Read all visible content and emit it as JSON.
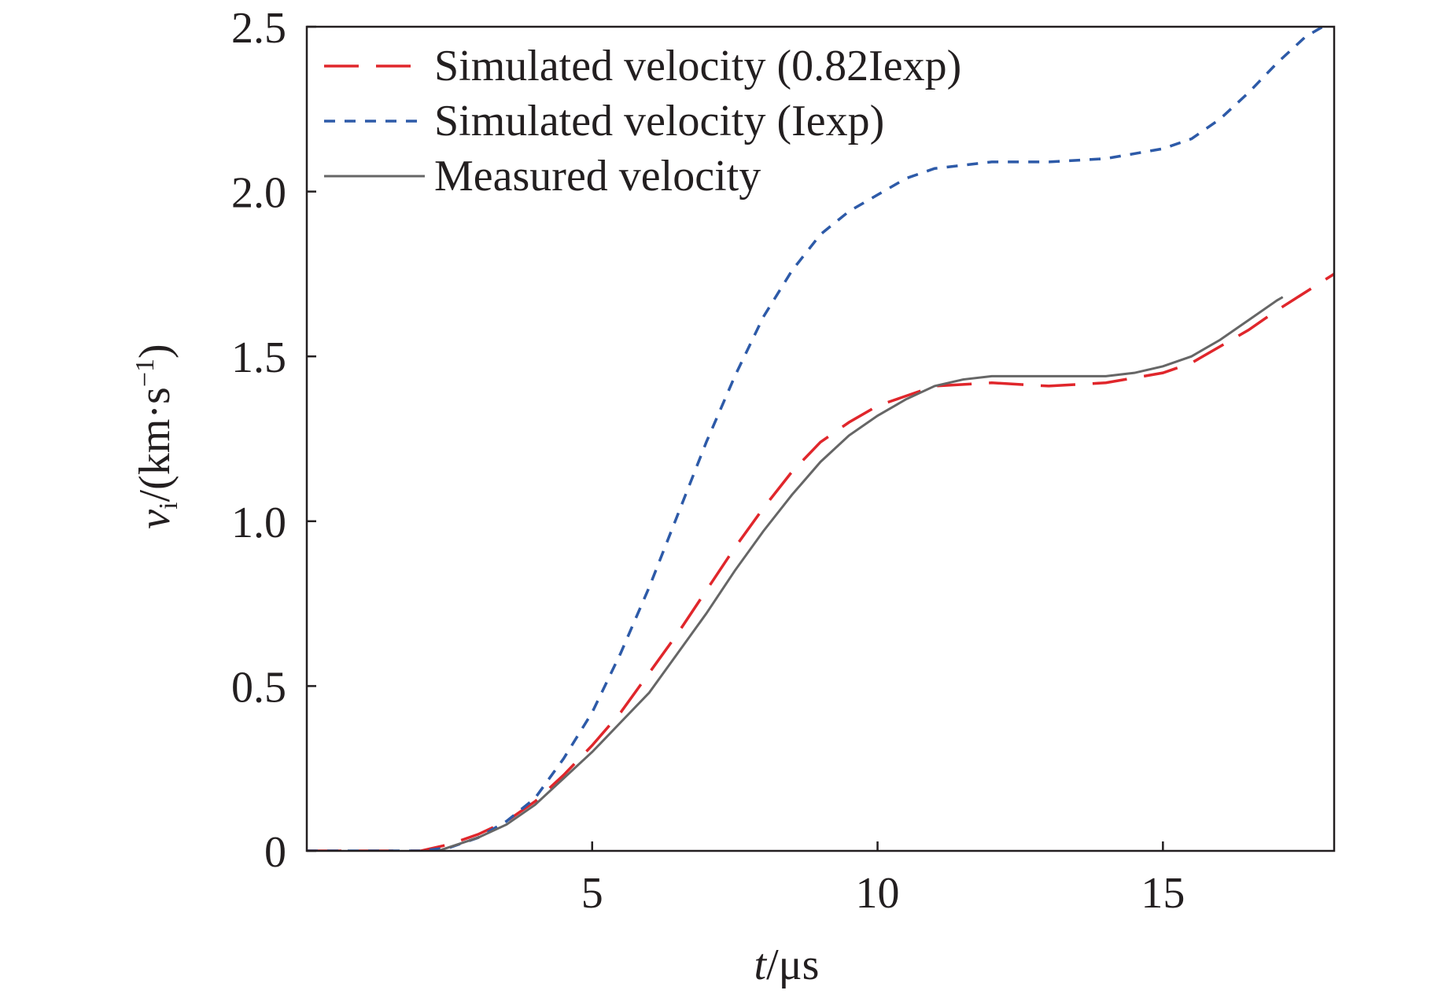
{
  "chart_data": {
    "type": "line",
    "xlabel": [
      "t",
      "/μs"
    ],
    "ylabel": [
      "v",
      "i",
      "/(km·s",
      "−1",
      ")"
    ],
    "xlim": [
      0,
      18
    ],
    "xticks": [
      5,
      10,
      15
    ],
    "ylim": [
      0,
      2.5
    ],
    "yticks": [
      0,
      0.5,
      {
        "value": 1,
        "label": "1.0"
      },
      1.5,
      {
        "value": 2,
        "label": "2.0"
      },
      2.5
    ],
    "legend": "upper left",
    "series": [
      {
        "name": "Simulated velocity (0.82Iexp)",
        "color": "#e0262b",
        "style": "dashed",
        "x": [
          0,
          1,
          2,
          2.5,
          3,
          3.5,
          4,
          4.5,
          5,
          5.5,
          6,
          6.5,
          7,
          7.5,
          8,
          8.5,
          9,
          9.5,
          10,
          10.5,
          11,
          12,
          13,
          14,
          15,
          15.5,
          16,
          16.5,
          17,
          18
        ],
        "values": [
          0,
          0,
          0,
          0.02,
          0.05,
          0.09,
          0.15,
          0.23,
          0.32,
          0.42,
          0.54,
          0.66,
          0.79,
          0.92,
          1.04,
          1.15,
          1.24,
          1.3,
          1.35,
          1.38,
          1.41,
          1.42,
          1.41,
          1.42,
          1.45,
          1.48,
          1.53,
          1.58,
          1.64,
          1.75
        ]
      },
      {
        "name": "Simulated velocity (Iexp)",
        "color": "#2d5aa8",
        "style": "dotted",
        "x": [
          0,
          1,
          2,
          2.5,
          3,
          3.5,
          4,
          4.5,
          5,
          5.5,
          6,
          6.5,
          7,
          7.5,
          8,
          8.5,
          9,
          9.5,
          10,
          10.5,
          11,
          12,
          13,
          14,
          15,
          15.5,
          16,
          16.5,
          17,
          17.5,
          17.8
        ],
        "values": [
          0,
          0,
          0,
          0.01,
          0.04,
          0.09,
          0.16,
          0.28,
          0.42,
          0.6,
          0.8,
          1.02,
          1.24,
          1.44,
          1.62,
          1.76,
          1.87,
          1.94,
          1.99,
          2.04,
          2.07,
          2.09,
          2.09,
          2.1,
          2.13,
          2.16,
          2.22,
          2.3,
          2.39,
          2.47,
          2.5
        ]
      },
      {
        "name": "Measured velocity",
        "color": "#666666",
        "style": "solid",
        "x": [
          2.3,
          3,
          3.5,
          4,
          4.5,
          5,
          5.5,
          6,
          6.5,
          7,
          7.5,
          8,
          8.5,
          9,
          9.5,
          10,
          10.5,
          11,
          11.5,
          12,
          13,
          14,
          14.5,
          15,
          15.5,
          16,
          16.5,
          17,
          17.1
        ],
        "values": [
          0,
          0.04,
          0.08,
          0.14,
          0.22,
          0.3,
          0.39,
          0.48,
          0.6,
          0.72,
          0.85,
          0.97,
          1.08,
          1.18,
          1.26,
          1.32,
          1.37,
          1.41,
          1.43,
          1.44,
          1.44,
          1.44,
          1.45,
          1.47,
          1.5,
          1.55,
          1.61,
          1.67,
          1.68
        ]
      }
    ]
  }
}
